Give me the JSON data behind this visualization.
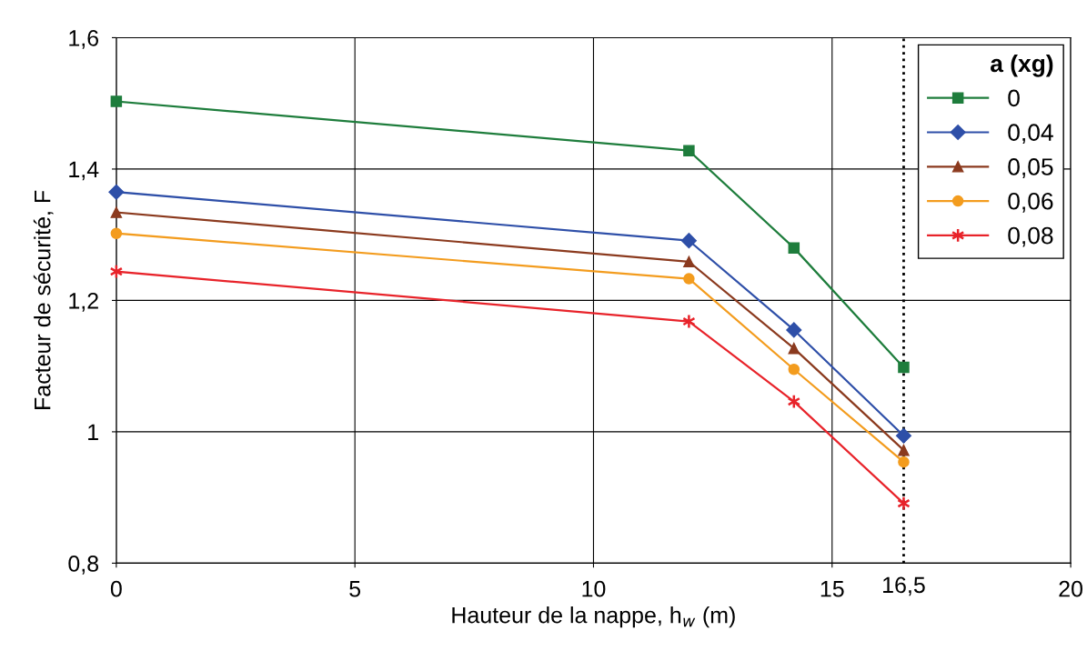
{
  "chart_data": {
    "type": "line",
    "xlabel": "Hauteur de la nappe, h$_{w}$ (m)",
    "ylabel": "Facteur de sécurité, F",
    "legend_title": "a (xg)",
    "xlim": [
      0,
      20
    ],
    "xticks": [
      0,
      5,
      10,
      15,
      20
    ],
    "ylim": [
      0.8,
      1.6
    ],
    "yticks": [
      {
        "value": 0.8,
        "label": "0,8"
      },
      {
        "value": 1.0,
        "label": "1"
      },
      {
        "value": 1.2,
        "label": "1,2"
      },
      {
        "value": 1.4,
        "label": "1,4"
      },
      {
        "value": 1.6,
        "label": "1,6"
      }
    ],
    "grid": true,
    "legend": "top right",
    "ref_lines": [
      {
        "axis": "x",
        "value": 16.5,
        "label": "16,5",
        "color": "#000000",
        "line_style": "dotted"
      }
    ],
    "series": [
      {
        "name": "0",
        "color": "#1e7d3c",
        "marker": "square",
        "x": [
          0,
          12,
          14.2,
          16.5
        ],
        "values": [
          1.503,
          1.428,
          1.28,
          1.098
        ]
      },
      {
        "name": "0,04",
        "color": "#2e4fa8",
        "marker": "diamond",
        "x": [
          0,
          12,
          14.2,
          16.5
        ],
        "values": [
          1.365,
          1.291,
          1.155,
          0.994
        ]
      },
      {
        "name": "0,05",
        "color": "#8b3a1e",
        "marker": "triangle",
        "x": [
          0,
          12,
          14.2,
          16.5
        ],
        "values": [
          1.334,
          1.259,
          1.127,
          0.972
        ]
      },
      {
        "name": "0,06",
        "color": "#f39c1e",
        "marker": "circle",
        "x": [
          0,
          12,
          14.2,
          16.5
        ],
        "values": [
          1.302,
          1.233,
          1.095,
          0.954
        ]
      },
      {
        "name": "0,08",
        "color": "#e8232a",
        "marker": "cross",
        "x": [
          0,
          12,
          14.2,
          16.5
        ],
        "values": [
          1.244,
          1.168,
          1.046,
          0.891
        ]
      }
    ]
  }
}
